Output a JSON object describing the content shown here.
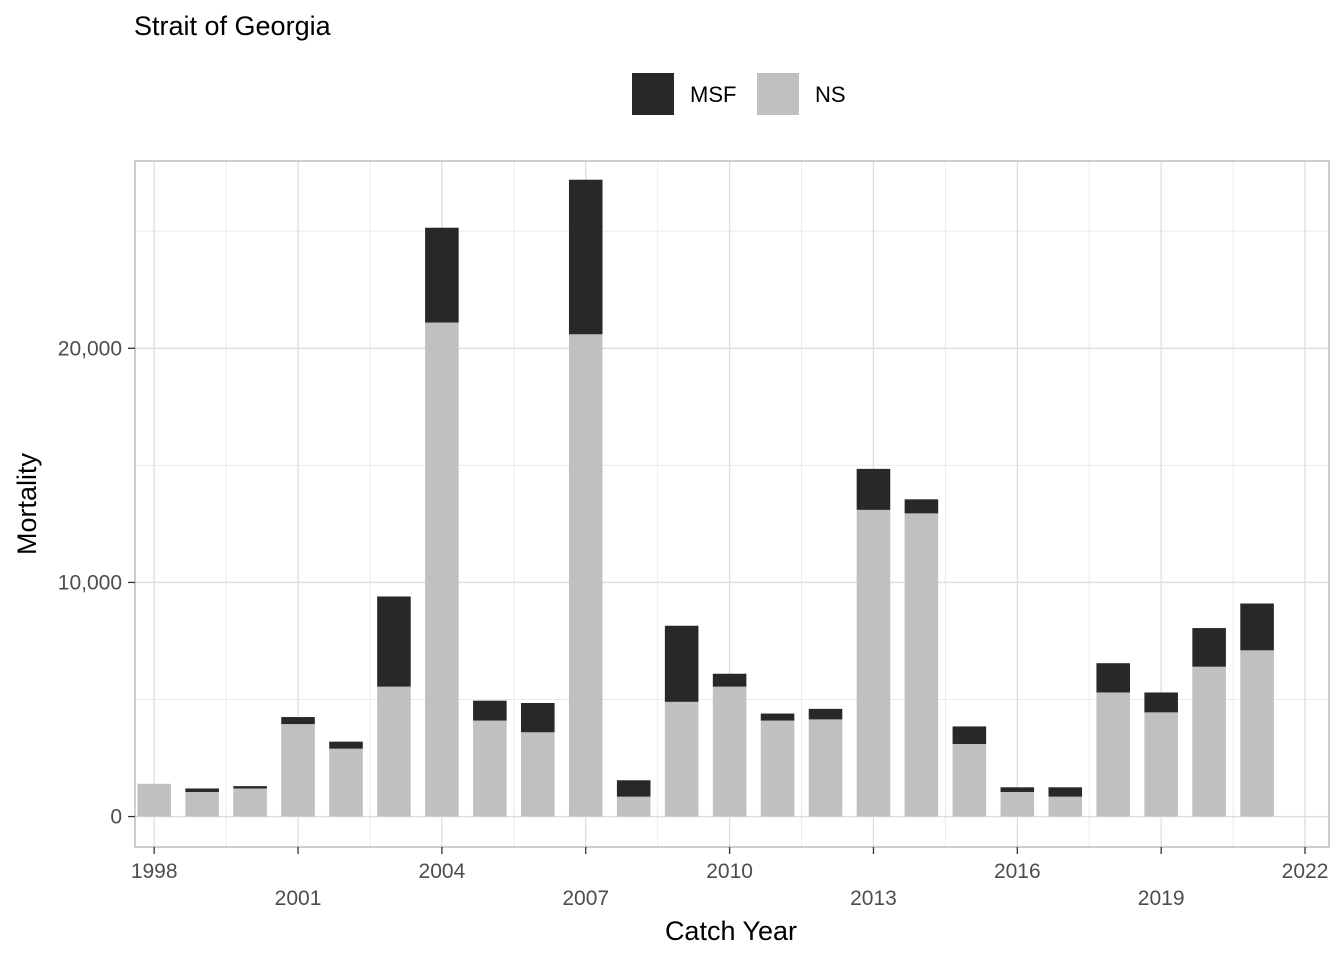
{
  "chart_data": {
    "type": "bar",
    "stacked": true,
    "title": "Strait of Georgia",
    "xlabel": "Catch Year",
    "ylabel": "Mortality",
    "legend_position": "top",
    "grid": true,
    "xlim": [
      1997.6,
      2022.5
    ],
    "ylim": [
      -1300,
      28000
    ],
    "x_ticks": [
      1998,
      2001,
      2004,
      2007,
      2010,
      2013,
      2016,
      2019,
      2022
    ],
    "x_tick_labels": [
      "1998",
      "2001",
      "2004",
      "2007",
      "2010",
      "2013",
      "2016",
      "2019",
      "2022"
    ],
    "y_ticks": [
      0,
      10000,
      20000
    ],
    "y_tick_labels": [
      "0",
      "10,000",
      "20,000"
    ],
    "categories": [
      1998,
      1999,
      2000,
      2001,
      2002,
      2003,
      2004,
      2005,
      2006,
      2007,
      2008,
      2009,
      2010,
      2011,
      2012,
      2013,
      2014,
      2015,
      2016,
      2017,
      2018,
      2019,
      2020,
      2021
    ],
    "series": [
      {
        "name": "NS",
        "color": "#c0c0c0",
        "values": [
          1400,
          1050,
          1200,
          3950,
          2900,
          5550,
          21100,
          4100,
          3600,
          20600,
          850,
          4900,
          5550,
          4100,
          4150,
          13100,
          12950,
          3100,
          1050,
          850,
          5300,
          4450,
          6400,
          7100
        ]
      },
      {
        "name": "MSF",
        "color": "#282828",
        "values": [
          0,
          150,
          100,
          300,
          300,
          3850,
          4050,
          850,
          1250,
          6600,
          700,
          3250,
          550,
          300,
          450,
          1750,
          600,
          750,
          200,
          400,
          1250,
          850,
          1650,
          2000
        ]
      }
    ]
  }
}
